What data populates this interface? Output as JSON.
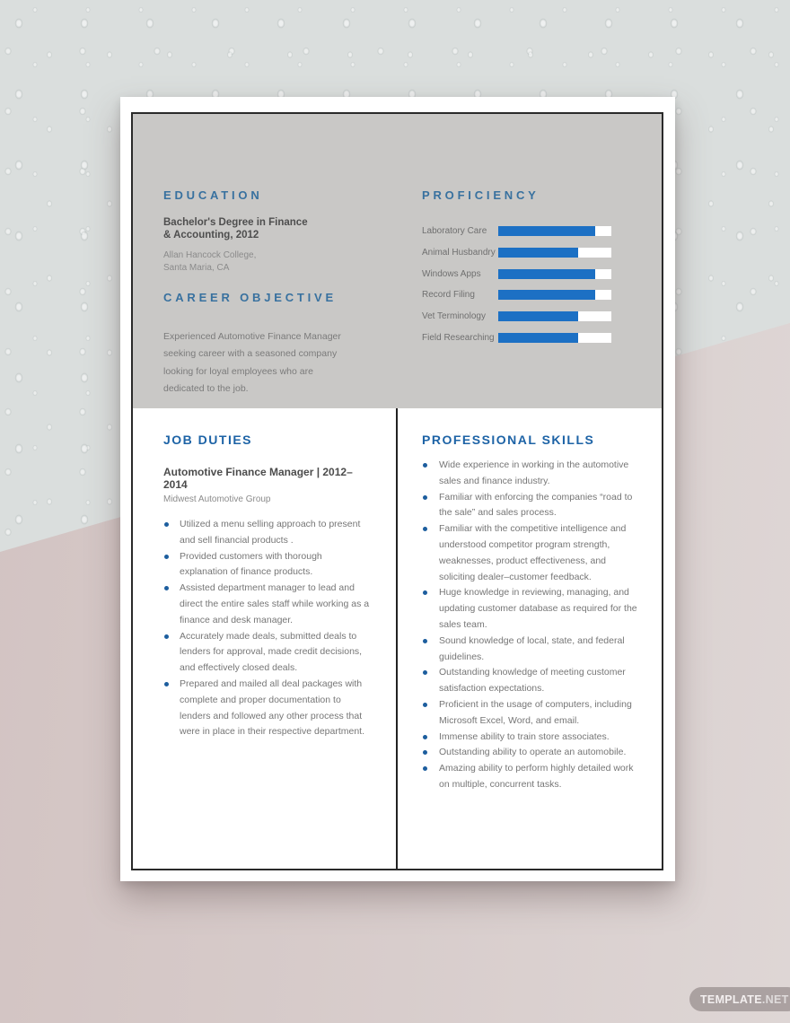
{
  "colors": {
    "accent_blue_top": "#38719f",
    "accent_blue_section": "#1d63a6",
    "bar_blue": "#1c70c4",
    "bullet_blue": "#1d5e9e",
    "panel_gray": "#c9c8c6",
    "background_pink": "#d2c3c2",
    "background_gray": "#dadedd"
  },
  "watermark": {
    "brand_bold": "TEMPLATE",
    "brand_light": ".NET"
  },
  "resume": {
    "education": {
      "heading": "EDUCATION",
      "degree_line1": "Bachelor's Degree in Finance",
      "degree_line2": "& Accounting, 2012",
      "school_line1": "Allan Hancock College,",
      "school_line2": "Santa Maria, CA"
    },
    "career_objective": {
      "heading": "CAREER OBJECTIVE",
      "text": "Experienced Automotive Finance Manager seeking career with a seasoned company looking for loyal employees who are dedicated to the job."
    },
    "proficiency": {
      "heading": "PROFICIENCY",
      "skills": [
        {
          "label": "Laboratory Care",
          "percent": 86
        },
        {
          "label": "Animal Husbandry",
          "percent": 71
        },
        {
          "label": "Windows Apps",
          "percent": 86
        },
        {
          "label": "Record Filing",
          "percent": 86
        },
        {
          "label": "Vet Terminology",
          "percent": 71
        },
        {
          "label": "Field Researching",
          "percent": 71
        }
      ]
    },
    "job_duties": {
      "heading": "JOB DUTIES",
      "title": "Automotive Finance Manager | 2012–2014",
      "company": "Midwest Automotive Group",
      "bullets": [
        "Utilized a menu selling approach to present and sell financial products .",
        "Provided customers with thorough explanation of finance products.",
        "Assisted department manager to lead and direct the entire sales staff while working as a finance and desk manager.",
        "Accurately made deals, submitted deals to lenders for approval, made credit decisions, and effectively closed deals.",
        "Prepared and mailed all deal packages with complete and proper documentation to lenders and followed any other process that were in place in their respective department."
      ]
    },
    "professional_skills": {
      "heading": "PROFESSIONAL SKILLS",
      "bullets": [
        "Wide experience in working in the automotive sales and finance industry.",
        "Familiar with enforcing the companies “road to the sale” and sales process.",
        "Familiar with the competitive intelligence and understood competitor program strength, weaknesses, product effectiveness, and soliciting dealer–customer feedback.",
        "Huge knowledge in reviewing, managing, and updating customer database as required for the sales team.",
        "Sound knowledge of local, state, and federal guidelines.",
        "Outstanding knowledge of meeting customer satisfaction expectations.",
        "Proficient in the usage of computers, including Microsoft Excel, Word, and email.",
        "Immense ability to train store associates.",
        "Outstanding ability to operate an automobile.",
        "Amazing ability to perform highly detailed work on multiple, concurrent tasks."
      ]
    }
  }
}
